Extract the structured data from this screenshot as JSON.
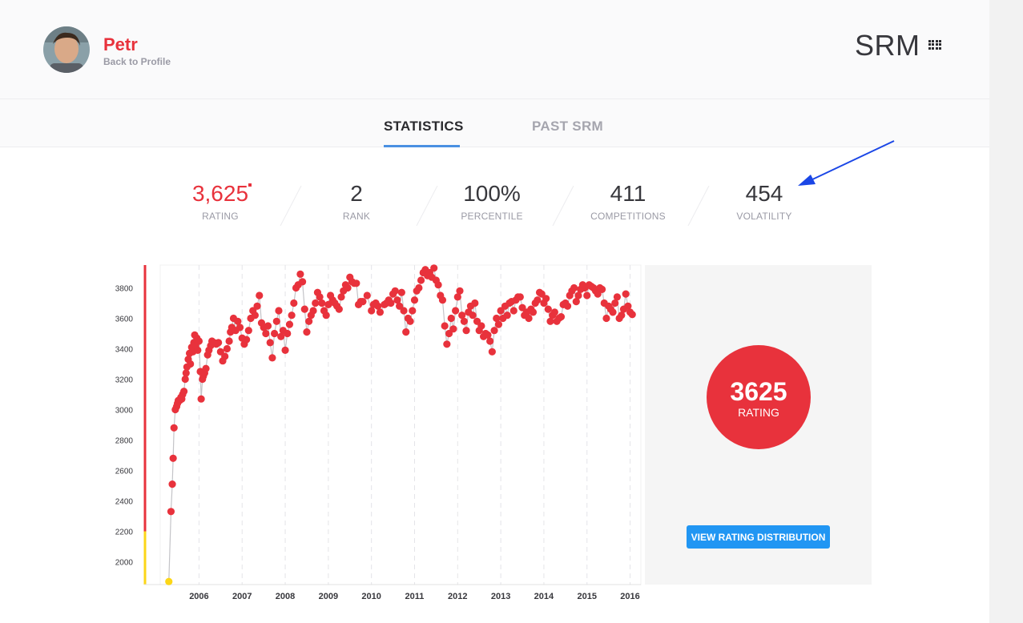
{
  "header": {
    "handle": "Petr",
    "back_link": "Back to Profile",
    "title": "SRM",
    "menu_icon": "grid-icon",
    "avatar_icon": "avatar"
  },
  "tabs": [
    {
      "label": "STATISTICS",
      "active": true
    },
    {
      "label": "PAST SRM",
      "active": false
    }
  ],
  "stats": [
    {
      "value": "3,625",
      "label": "RATING"
    },
    {
      "value": "2",
      "label": "RANK"
    },
    {
      "value": "100%",
      "label": "PERCENTILE"
    },
    {
      "value": "411",
      "label": "COMPETITIONS"
    },
    {
      "value": "454",
      "label": "VOLATILITY"
    }
  ],
  "distribution": {
    "rating_value": "3625",
    "rating_label": "RATING",
    "button_label": "VIEW RATING DISTRIBUTION"
  },
  "colors": {
    "accent_red": "#e8323c",
    "rating_yellow": "#fcd617",
    "button_blue": "#2196f3",
    "annotation_arrow": "#1a46e6"
  },
  "chart_data": {
    "type": "scatter",
    "title": "",
    "xlabel": "",
    "ylabel": "",
    "xlim": [
      2005.1,
      2016.25
    ],
    "ylim": [
      1850,
      3950
    ],
    "x_ticks": [
      "2006",
      "2007",
      "2008",
      "2009",
      "2010",
      "2011",
      "2012",
      "2013",
      "2014",
      "2015",
      "2016"
    ],
    "y_ticks": [
      "2000",
      "2200",
      "2400",
      "2600",
      "2800",
      "3000",
      "3200",
      "3400",
      "3600",
      "3800"
    ],
    "grid": "vertical dashed",
    "series": [
      {
        "points": [
          [
            2005.3,
            1870
          ],
          [
            2005.35,
            2330
          ],
          [
            2005.38,
            2510
          ],
          [
            2005.4,
            2680
          ],
          [
            2005.42,
            2880
          ],
          [
            2005.45,
            3000
          ],
          [
            2005.48,
            3020
          ],
          [
            2005.5,
            3040
          ],
          [
            2005.52,
            3060
          ],
          [
            2005.55,
            3060
          ],
          [
            2005.58,
            3080
          ],
          [
            2005.6,
            3070
          ],
          [
            2005.62,
            3100
          ],
          [
            2005.65,
            3120
          ],
          [
            2005.68,
            3200
          ],
          [
            2005.7,
            3240
          ],
          [
            2005.72,
            3280
          ],
          [
            2005.75,
            3330
          ],
          [
            2005.78,
            3370
          ],
          [
            2005.8,
            3300
          ],
          [
            2005.83,
            3410
          ],
          [
            2005.86,
            3380
          ],
          [
            2005.88,
            3440
          ],
          [
            2005.9,
            3490
          ],
          [
            2005.92,
            3420
          ],
          [
            2005.95,
            3470
          ],
          [
            2005.97,
            3390
          ],
          [
            2006.0,
            3450
          ],
          [
            2006.03,
            3250
          ],
          [
            2006.05,
            3070
          ],
          [
            2006.08,
            3200
          ],
          [
            2006.1,
            3220
          ],
          [
            2006.13,
            3240
          ],
          [
            2006.16,
            3270
          ],
          [
            2006.2,
            3360
          ],
          [
            2006.23,
            3390
          ],
          [
            2006.27,
            3420
          ],
          [
            2006.3,
            3450
          ],
          [
            2006.35,
            3440
          ],
          [
            2006.4,
            3430
          ],
          [
            2006.45,
            3440
          ],
          [
            2006.5,
            3380
          ],
          [
            2006.55,
            3320
          ],
          [
            2006.6,
            3350
          ],
          [
            2006.65,
            3400
          ],
          [
            2006.7,
            3450
          ],
          [
            2006.73,
            3510
          ],
          [
            2006.76,
            3540
          ],
          [
            2006.8,
            3600
          ],
          [
            2006.85,
            3520
          ],
          [
            2006.9,
            3580
          ],
          [
            2006.95,
            3540
          ],
          [
            2007.0,
            3470
          ],
          [
            2007.05,
            3430
          ],
          [
            2007.1,
            3460
          ],
          [
            2007.15,
            3520
          ],
          [
            2007.2,
            3600
          ],
          [
            2007.25,
            3650
          ],
          [
            2007.3,
            3620
          ],
          [
            2007.35,
            3680
          ],
          [
            2007.4,
            3750
          ],
          [
            2007.45,
            3570
          ],
          [
            2007.5,
            3540
          ],
          [
            2007.55,
            3500
          ],
          [
            2007.6,
            3550
          ],
          [
            2007.65,
            3440
          ],
          [
            2007.7,
            3340
          ],
          [
            2007.75,
            3500
          ],
          [
            2007.8,
            3580
          ],
          [
            2007.85,
            3650
          ],
          [
            2007.9,
            3480
          ],
          [
            2007.95,
            3520
          ],
          [
            2008.0,
            3390
          ],
          [
            2008.05,
            3500
          ],
          [
            2008.1,
            3560
          ],
          [
            2008.15,
            3620
          ],
          [
            2008.2,
            3700
          ],
          [
            2008.25,
            3800
          ],
          [
            2008.3,
            3820
          ],
          [
            2008.35,
            3890
          ],
          [
            2008.4,
            3840
          ],
          [
            2008.45,
            3660
          ],
          [
            2008.5,
            3510
          ],
          [
            2008.55,
            3580
          ],
          [
            2008.6,
            3620
          ],
          [
            2008.65,
            3650
          ],
          [
            2008.7,
            3700
          ],
          [
            2008.75,
            3770
          ],
          [
            2008.8,
            3740
          ],
          [
            2008.85,
            3700
          ],
          [
            2008.9,
            3650
          ],
          [
            2008.95,
            3620
          ],
          [
            2009.0,
            3690
          ],
          [
            2009.05,
            3750
          ],
          [
            2009.1,
            3720
          ],
          [
            2009.15,
            3700
          ],
          [
            2009.2,
            3680
          ],
          [
            2009.25,
            3660
          ],
          [
            2009.3,
            3740
          ],
          [
            2009.35,
            3780
          ],
          [
            2009.4,
            3820
          ],
          [
            2009.45,
            3800
          ],
          [
            2009.5,
            3870
          ],
          [
            2009.55,
            3840
          ],
          [
            2009.6,
            3830
          ],
          [
            2009.65,
            3830
          ],
          [
            2009.7,
            3690
          ],
          [
            2009.75,
            3710
          ],
          [
            2009.8,
            3710
          ],
          [
            2009.9,
            3750
          ],
          [
            2010.0,
            3650
          ],
          [
            2010.05,
            3690
          ],
          [
            2010.1,
            3700
          ],
          [
            2010.15,
            3680
          ],
          [
            2010.2,
            3640
          ],
          [
            2010.3,
            3690
          ],
          [
            2010.35,
            3700
          ],
          [
            2010.4,
            3720
          ],
          [
            2010.45,
            3700
          ],
          [
            2010.5,
            3760
          ],
          [
            2010.55,
            3780
          ],
          [
            2010.6,
            3720
          ],
          [
            2010.65,
            3680
          ],
          [
            2010.7,
            3770
          ],
          [
            2010.75,
            3650
          ],
          [
            2010.8,
            3510
          ],
          [
            2010.85,
            3600
          ],
          [
            2010.9,
            3580
          ],
          [
            2010.95,
            3650
          ],
          [
            2011.0,
            3720
          ],
          [
            2011.05,
            3780
          ],
          [
            2011.1,
            3800
          ],
          [
            2011.15,
            3850
          ],
          [
            2011.2,
            3900
          ],
          [
            2011.25,
            3920
          ],
          [
            2011.3,
            3880
          ],
          [
            2011.35,
            3900
          ],
          [
            2011.4,
            3870
          ],
          [
            2011.45,
            3930
          ],
          [
            2011.5,
            3850
          ],
          [
            2011.55,
            3820
          ],
          [
            2011.6,
            3750
          ],
          [
            2011.65,
            3720
          ],
          [
            2011.7,
            3550
          ],
          [
            2011.75,
            3430
          ],
          [
            2011.8,
            3500
          ],
          [
            2011.85,
            3600
          ],
          [
            2011.9,
            3530
          ],
          [
            2011.95,
            3650
          ],
          [
            2012.0,
            3740
          ],
          [
            2012.05,
            3780
          ],
          [
            2012.1,
            3620
          ],
          [
            2012.15,
            3580
          ],
          [
            2012.2,
            3520
          ],
          [
            2012.25,
            3640
          ],
          [
            2012.3,
            3680
          ],
          [
            2012.35,
            3620
          ],
          [
            2012.4,
            3700
          ],
          [
            2012.45,
            3580
          ],
          [
            2012.5,
            3520
          ],
          [
            2012.55,
            3550
          ],
          [
            2012.6,
            3480
          ],
          [
            2012.65,
            3500
          ],
          [
            2012.7,
            3490
          ],
          [
            2012.75,
            3450
          ],
          [
            2012.8,
            3380
          ],
          [
            2012.85,
            3520
          ],
          [
            2012.9,
            3600
          ],
          [
            2012.95,
            3560
          ],
          [
            2013.0,
            3650
          ],
          [
            2013.05,
            3600
          ],
          [
            2013.1,
            3680
          ],
          [
            2013.15,
            3620
          ],
          [
            2013.2,
            3700
          ],
          [
            2013.25,
            3710
          ],
          [
            2013.3,
            3650
          ],
          [
            2013.35,
            3720
          ],
          [
            2013.4,
            3740
          ],
          [
            2013.45,
            3740
          ],
          [
            2013.5,
            3670
          ],
          [
            2013.55,
            3620
          ],
          [
            2013.6,
            3640
          ],
          [
            2013.65,
            3600
          ],
          [
            2013.7,
            3660
          ],
          [
            2013.75,
            3640
          ],
          [
            2013.8,
            3700
          ],
          [
            2013.85,
            3720
          ],
          [
            2013.9,
            3770
          ],
          [
            2013.95,
            3760
          ],
          [
            2014.0,
            3700
          ],
          [
            2014.05,
            3730
          ],
          [
            2014.1,
            3660
          ],
          [
            2014.15,
            3580
          ],
          [
            2014.2,
            3620
          ],
          [
            2014.25,
            3640
          ],
          [
            2014.3,
            3580
          ],
          [
            2014.35,
            3600
          ],
          [
            2014.4,
            3610
          ],
          [
            2014.45,
            3690
          ],
          [
            2014.5,
            3700
          ],
          [
            2014.55,
            3680
          ],
          [
            2014.6,
            3750
          ],
          [
            2014.65,
            3780
          ],
          [
            2014.7,
            3800
          ],
          [
            2014.75,
            3710
          ],
          [
            2014.8,
            3750
          ],
          [
            2014.85,
            3790
          ],
          [
            2014.9,
            3820
          ],
          [
            2014.95,
            3800
          ],
          [
            2015.0,
            3750
          ],
          [
            2015.05,
            3820
          ],
          [
            2015.1,
            3810
          ],
          [
            2015.15,
            3800
          ],
          [
            2015.2,
            3780
          ],
          [
            2015.25,
            3760
          ],
          [
            2015.3,
            3800
          ],
          [
            2015.35,
            3790
          ],
          [
            2015.4,
            3700
          ],
          [
            2015.45,
            3600
          ],
          [
            2015.5,
            3680
          ],
          [
            2015.55,
            3660
          ],
          [
            2015.6,
            3640
          ],
          [
            2015.65,
            3700
          ],
          [
            2015.7,
            3740
          ],
          [
            2015.75,
            3600
          ],
          [
            2015.8,
            3620
          ],
          [
            2015.85,
            3660
          ],
          [
            2015.9,
            3760
          ],
          [
            2015.95,
            3680
          ],
          [
            2016.0,
            3640
          ],
          [
            2016.05,
            3625
          ]
        ]
      }
    ]
  }
}
